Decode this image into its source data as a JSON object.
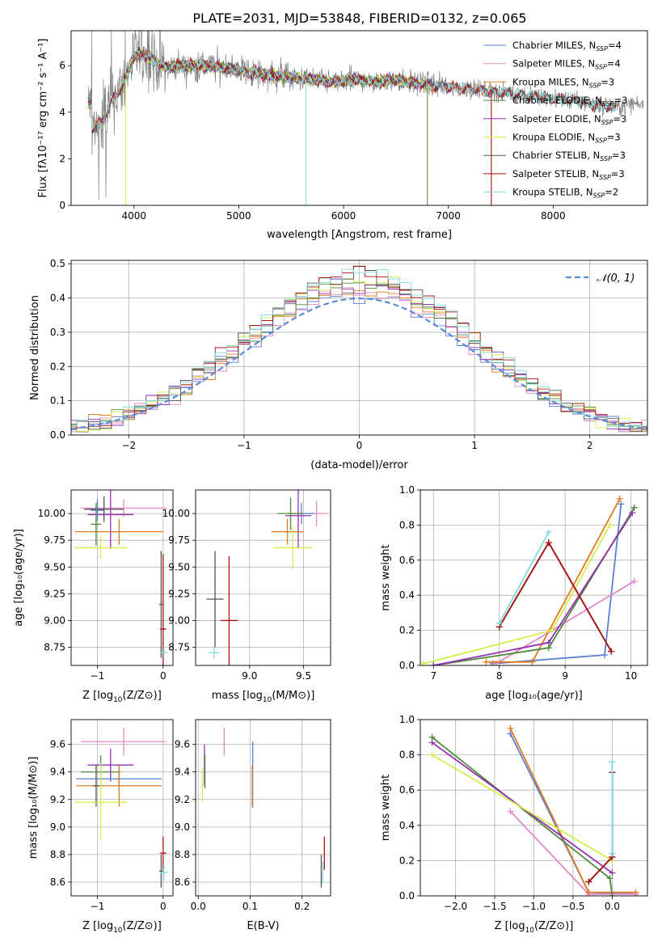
{
  "title": "PLATE=2031, MJD=53848, FIBERID=0132, z=0.065",
  "colors": {
    "chabrier_miles": "#5b7fd6",
    "salpeter_miles": "#e388c8",
    "kroupa_miles": "#e07b1f",
    "chabrier_elodie": "#4f8a3c",
    "salpeter_elodie": "#9230b0",
    "kroupa_elodie": "#d6ec4e",
    "chabrier_stelib": "#555555",
    "salpeter_stelib": "#aa1010",
    "kroupa_stelib": "#7fdde0",
    "data_spectrum": "#808080",
    "normal_curve": "#5b8bd6"
  },
  "chart_data": [
    {
      "id": "spectrum",
      "type": "line",
      "xlabel": "wavelength [Angstrom, rest frame]",
      "ylabel": "Flux [fλ10⁻¹⁷ erg cm⁻² s⁻¹ A⁻¹]",
      "xlim": [
        3400,
        8900
      ],
      "ylim": [
        0,
        7.5
      ],
      "xticks": [
        4000,
        5000,
        6000,
        7000,
        8000
      ],
      "yticks": [
        0,
        2,
        4,
        6
      ],
      "grid": false,
      "legend_position": "top-right",
      "legend": [
        {
          "label": "Chabrier MILES, N",
          "sub": "SSP",
          "tail": "=4",
          "key": "chabrier_miles"
        },
        {
          "label": "Salpeter MILES, N",
          "sub": "SSP",
          "tail": "=4",
          "key": "salpeter_miles"
        },
        {
          "label": "Kroupa MILES, N",
          "sub": "SSP",
          "tail": "=3",
          "key": "kroupa_miles"
        },
        {
          "label": "Chabrier ELODIE, N",
          "sub": "SSP",
          "tail": "=3",
          "key": "chabrier_elodie"
        },
        {
          "label": "Salpeter ELODIE, N",
          "sub": "SSP",
          "tail": "=3",
          "key": "salpeter_elodie"
        },
        {
          "label": "Kroupa ELODIE, N",
          "sub": "SSP",
          "tail": "=3",
          "key": "kroupa_elodie"
        },
        {
          "label": "Chabrier STELIB, N",
          "sub": "SSP",
          "tail": "=3",
          "key": "chabrier_stelib"
        },
        {
          "label": "Salpeter STELIB, N",
          "sub": "SSP",
          "tail": "=3",
          "key": "salpeter_stelib"
        },
        {
          "label": "Kroupa STELIB, N",
          "sub": "SSP",
          "tail": "=2",
          "key": "kroupa_stelib"
        }
      ],
      "continuum": [
        [
          3600,
          3.3
        ],
        [
          3700,
          3.6
        ],
        [
          3800,
          4.6
        ],
        [
          3900,
          5.2
        ],
        [
          4000,
          6.4
        ],
        [
          4100,
          6.5
        ],
        [
          4200,
          6.2
        ],
        [
          4300,
          5.9
        ],
        [
          4400,
          6.0
        ],
        [
          4500,
          6.0
        ],
        [
          4700,
          6.0
        ],
        [
          4900,
          5.9
        ],
        [
          5100,
          5.7
        ],
        [
          5300,
          5.6
        ],
        [
          5500,
          5.5
        ],
        [
          5700,
          5.4
        ],
        [
          5900,
          5.3
        ],
        [
          6100,
          5.4
        ],
        [
          6300,
          5.3
        ],
        [
          6500,
          5.4
        ],
        [
          6600,
          5.3
        ],
        [
          6800,
          5.2
        ],
        [
          7000,
          5.1
        ],
        [
          7200,
          5.0
        ],
        [
          7400,
          4.9
        ],
        [
          7600,
          4.8
        ],
        [
          7800,
          4.7
        ],
        [
          8000,
          4.6
        ],
        [
          8200,
          4.5
        ],
        [
          8400,
          4.3
        ],
        [
          8600,
          4.2
        ],
        [
          8800,
          4.4
        ]
      ]
    },
    {
      "id": "residuals",
      "type": "histogram",
      "xlabel": "(data-model)/error",
      "ylabel": "Normed distribution",
      "xlim": [
        -2.5,
        2.5
      ],
      "ylim": [
        0,
        0.51
      ],
      "xticks": [
        -2,
        -1,
        0,
        1,
        2
      ],
      "yticks": [
        0.0,
        0.1,
        0.2,
        0.3,
        0.4,
        0.5
      ],
      "grid": true,
      "legend_position": "top-right",
      "legend_label": "𝒩(0, 1)",
      "bin_width": 0.1
    },
    {
      "id": "age-vs-Z",
      "type": "errorbar",
      "xlabel_main": "Z [log",
      "xlabel_sub": "10",
      "xlabel_tail": "(Z/Z⊙)]",
      "ylabel": "age  [log₁₀(age/yr)]",
      "xlim": [
        -1.4,
        0.15
      ],
      "ylim": [
        8.58,
        10.22
      ],
      "xticks": [
        -1,
        0
      ],
      "yticks": [
        8.75,
        9.0,
        9.25,
        9.5,
        9.75,
        10.0
      ],
      "grid": true,
      "points": [
        {
          "key": "salpeter_miles",
          "x": -0.6,
          "xerr": 0.65,
          "y": 10.05,
          "yerr": 0.08
        },
        {
          "key": "chabrier_stelib",
          "x": -0.9,
          "xerr": 0.3,
          "y": 10.04,
          "yerr": 0.12
        },
        {
          "key": "salpeter_elodie",
          "x": -0.8,
          "xerr": 0.35,
          "y": 9.99,
          "yerr": 0.32
        },
        {
          "key": "chabrier_miles",
          "x": -1.0,
          "xerr": 0.1,
          "y": 10.03,
          "yerr": 0.1
        },
        {
          "key": "kroupa_miles",
          "x": -0.67,
          "xerr": 0.67,
          "y": 9.83,
          "yerr": 0.12
        },
        {
          "key": "chabrier_elodie",
          "x": -1.02,
          "xerr": 0.08,
          "y": 9.9,
          "yerr": 0.2
        },
        {
          "key": "kroupa_elodie",
          "x": -0.95,
          "xerr": 0.4,
          "y": 9.68,
          "yerr": 0.1
        },
        {
          "key": "chabrier_stelib",
          "x": -0.03,
          "xerr": 0.03,
          "y": 9.15,
          "yerr": 0.5
        },
        {
          "key": "salpeter_stelib",
          "x": 0.0,
          "xerr": 0.05,
          "y": 8.92,
          "yerr": 0.7
        },
        {
          "key": "kroupa_stelib",
          "x": 0.01,
          "xerr": 0.06,
          "y": 8.7,
          "yerr": 0.05
        }
      ]
    },
    {
      "id": "age-vs-mass",
      "type": "errorbar",
      "xlabel_main": "mass [log",
      "xlabel_sub": "10",
      "xlabel_tail": "(M/M⊙)]",
      "xlim": [
        8.5,
        9.75
      ],
      "ylim": [
        8.58,
        10.22
      ],
      "xticks": [
        9.0,
        9.5
      ],
      "yticks": [
        8.75,
        9.0,
        9.25,
        9.5,
        9.75,
        10.0
      ],
      "grid": true,
      "points": [
        {
          "key": "salpeter_miles",
          "x": 9.62,
          "xerr": 0.1,
          "y": 10.0,
          "yerr": 0.12
        },
        {
          "key": "chabrier_miles",
          "x": 9.48,
          "xerr": 0.12,
          "y": 10.0,
          "yerr": 0.1
        },
        {
          "key": "salpeter_elodie",
          "x": 9.45,
          "xerr": 0.12,
          "y": 9.98,
          "yerr": 0.3
        },
        {
          "key": "chabrier_elodie",
          "x": 9.38,
          "xerr": 0.12,
          "y": 10.0,
          "yerr": 0.15
        },
        {
          "key": "kroupa_miles",
          "x": 9.35,
          "xerr": 0.15,
          "y": 9.83,
          "yerr": 0.12
        },
        {
          "key": "kroupa_elodie",
          "x": 9.4,
          "xerr": 0.18,
          "y": 9.68,
          "yerr": 0.2
        },
        {
          "key": "chabrier_stelib",
          "x": 8.68,
          "xerr": 0.08,
          "y": 9.2,
          "yerr": 0.45
        },
        {
          "key": "salpeter_stelib",
          "x": 8.81,
          "xerr": 0.08,
          "y": 9.0,
          "yerr": 0.6
        },
        {
          "key": "kroupa_stelib",
          "x": 8.67,
          "xerr": 0.05,
          "y": 8.7,
          "yerr": 0.05
        }
      ]
    },
    {
      "id": "weight-vs-age",
      "type": "line",
      "xlabel": "age  [log₁₀(age/yr)]",
      "ylabel": "mass weight",
      "xlim": [
        6.8,
        10.25
      ],
      "ylim": [
        0,
        1.0
      ],
      "xticks": [
        7,
        8,
        9,
        10
      ],
      "yticks": [
        0.0,
        0.2,
        0.4,
        0.6,
        0.8,
        1.0
      ],
      "grid": true,
      "series": [
        {
          "key": "chabrier_miles",
          "points": [
            [
              7.9,
              0.01
            ],
            [
              9.6,
              0.06
            ],
            [
              9.85,
              0.92
            ]
          ]
        },
        {
          "key": "salpeter_miles",
          "points": [
            [
              7.95,
              0.01
            ],
            [
              8.8,
              0.2
            ],
            [
              10.05,
              0.48
            ]
          ]
        },
        {
          "key": "kroupa_miles",
          "points": [
            [
              7.8,
              0.02
            ],
            [
              8.5,
              0.02
            ],
            [
              9.83,
              0.95
            ]
          ]
        },
        {
          "key": "chabrier_elodie",
          "points": [
            [
              7.0,
              0.0
            ],
            [
              8.75,
              0.1
            ],
            [
              10.05,
              0.9
            ]
          ]
        },
        {
          "key": "salpeter_elodie",
          "points": [
            [
              7.0,
              0.0
            ],
            [
              8.75,
              0.13
            ],
            [
              10.02,
              0.87
            ]
          ]
        },
        {
          "key": "kroupa_elodie",
          "points": [
            [
              6.85,
              0.01
            ],
            [
              8.8,
              0.2
            ],
            [
              9.68,
              0.8
            ]
          ]
        },
        {
          "key": "chabrier_stelib",
          "points": [
            [
              8.0,
              0.22
            ],
            [
              8.75,
              0.7
            ],
            [
              9.7,
              0.08
            ]
          ]
        },
        {
          "key": "salpeter_stelib",
          "points": [
            [
              8.0,
              0.22
            ],
            [
              8.75,
              0.7
            ],
            [
              9.7,
              0.08
            ]
          ]
        },
        {
          "key": "kroupa_stelib",
          "points": [
            [
              8.0,
              0.24
            ],
            [
              8.75,
              0.76
            ]
          ]
        }
      ]
    },
    {
      "id": "mass-vs-Z",
      "type": "errorbar",
      "xlabel_main": "Z [log",
      "xlabel_sub": "10",
      "xlabel_tail": "(Z/Z⊙)]",
      "ylabel": "mass [log₁₀(M/M⊙)]",
      "xlim": [
        -1.4,
        0.15
      ],
      "ylim": [
        8.5,
        9.78
      ],
      "xticks": [
        -1,
        0
      ],
      "yticks": [
        8.6,
        8.8,
        9.0,
        9.2,
        9.4,
        9.6
      ],
      "grid": true,
      "points": [
        {
          "key": "salpeter_miles",
          "x": -0.6,
          "xerr": 0.65,
          "y": 9.62,
          "yerr": 0.1
        },
        {
          "key": "salpeter_elodie",
          "x": -0.8,
          "xerr": 0.35,
          "y": 9.45,
          "yerr": 0.12
        },
        {
          "key": "chabrier_elodie",
          "x": -0.95,
          "xerr": 0.3,
          "y": 9.4,
          "yerr": 0.12
        },
        {
          "key": "chabrier_miles",
          "x": -0.67,
          "xerr": 0.65,
          "y": 9.35,
          "yerr": 0.1
        },
        {
          "key": "kroupa_miles",
          "x": -0.67,
          "xerr": 0.65,
          "y": 9.3,
          "yerr": 0.15
        },
        {
          "key": "chabrier_stelib",
          "x": -1.02,
          "xerr": 0.05,
          "y": 9.3,
          "yerr": 0.15
        },
        {
          "key": "kroupa_elodie",
          "x": -0.95,
          "xerr": 0.4,
          "y": 9.18,
          "yerr": 0.28
        },
        {
          "key": "salpeter_stelib",
          "x": 0.0,
          "xerr": 0.05,
          "y": 8.81,
          "yerr": 0.12
        },
        {
          "key": "chabrier_stelib",
          "x": -0.03,
          "xerr": 0.03,
          "y": 8.68,
          "yerr": 0.12
        },
        {
          "key": "kroupa_stelib",
          "x": 0.01,
          "xerr": 0.06,
          "y": 8.67,
          "yerr": 0.06
        }
      ]
    },
    {
      "id": "mass-vs-ebv",
      "type": "errorbar",
      "xlabel": "E(B-V)",
      "xlim": [
        -0.005,
        0.255
      ],
      "ylim": [
        8.5,
        9.78
      ],
      "xticks": [
        0.0,
        0.1,
        0.2
      ],
      "yticks": [
        8.6,
        8.8,
        9.0,
        9.2,
        9.4,
        9.6
      ],
      "grid": true,
      "points": [
        {
          "key": "salpeter_miles",
          "x": 0.05,
          "xerr": 0,
          "y": 9.62,
          "yerr": 0.1
        },
        {
          "key": "salpeter_elodie",
          "x": 0.012,
          "xerr": 0,
          "y": 9.45,
          "yerr": 0.15
        },
        {
          "key": "chabrier_miles",
          "x": 0.105,
          "xerr": 0,
          "y": 9.38,
          "yerr": 0.24
        },
        {
          "key": "kroupa_miles",
          "x": 0.104,
          "xerr": 0,
          "y": 9.3,
          "yerr": 0.15
        },
        {
          "key": "chabrier_elodie",
          "x": 0.013,
          "xerr": 0,
          "y": 9.4,
          "yerr": 0.12
        },
        {
          "key": "kroupa_elodie",
          "x": 0.008,
          "xerr": 0,
          "y": 9.3,
          "yerr": 0.12
        },
        {
          "key": "salpeter_stelib",
          "x": 0.243,
          "xerr": 0,
          "y": 8.81,
          "yerr": 0.12
        },
        {
          "key": "chabrier_stelib",
          "x": 0.237,
          "xerr": 0,
          "y": 8.68,
          "yerr": 0.12
        },
        {
          "key": "kroupa_stelib",
          "x": 0.24,
          "xerr": 0,
          "y": 8.67,
          "yerr": 0.08
        }
      ]
    },
    {
      "id": "weight-vs-Z",
      "type": "line",
      "xlabel_main": "Z [log",
      "xlabel_sub": "10",
      "xlabel_tail": "(Z/Z⊙)]",
      "ylabel": "mass weight",
      "xlim": [
        -2.45,
        0.45
      ],
      "ylim": [
        0,
        1.0
      ],
      "xticks": [
        -2.0,
        -1.5,
        -1.0,
        -0.5,
        0.0
      ],
      "yticks": [
        0.0,
        0.2,
        0.4,
        0.6,
        0.8,
        1.0
      ],
      "grid": true,
      "series": [
        {
          "key": "chabrier_miles",
          "points": [
            [
              -1.3,
              0.92
            ],
            [
              -0.3,
              0.02
            ],
            [
              0.3,
              0.01
            ]
          ]
        },
        {
          "key": "salpeter_miles",
          "points": [
            [
              -1.3,
              0.48
            ],
            [
              -0.3,
              0.01
            ],
            [
              0.3,
              0.01
            ]
          ]
        },
        {
          "key": "kroupa_miles",
          "points": [
            [
              -1.3,
              0.95
            ],
            [
              -0.3,
              0.02
            ],
            [
              0.3,
              0.02
            ]
          ]
        },
        {
          "key": "chabrier_elodie",
          "points": [
            [
              -2.3,
              0.9
            ],
            [
              -0.03,
              0.1
            ],
            [
              0.0,
              0.0
            ]
          ]
        },
        {
          "key": "salpeter_elodie",
          "points": [
            [
              -2.3,
              0.87
            ],
            [
              0.0,
              0.13
            ]
          ]
        },
        {
          "key": "kroupa_elodie",
          "points": [
            [
              -2.3,
              0.8
            ],
            [
              0.0,
              0.2
            ]
          ]
        },
        {
          "key": "chabrier_stelib",
          "points": [
            [
              -0.3,
              0.08
            ],
            [
              0.0,
              0.22
            ],
            [
              0.0,
              0.7
            ]
          ]
        },
        {
          "key": "salpeter_stelib",
          "points": [
            [
              -0.3,
              0.08
            ],
            [
              0.0,
              0.22
            ],
            [
              0.0,
              0.7
            ]
          ]
        },
        {
          "key": "kroupa_stelib",
          "points": [
            [
              0.0,
              0.24
            ],
            [
              0.0,
              0.76
            ]
          ]
        }
      ]
    }
  ]
}
